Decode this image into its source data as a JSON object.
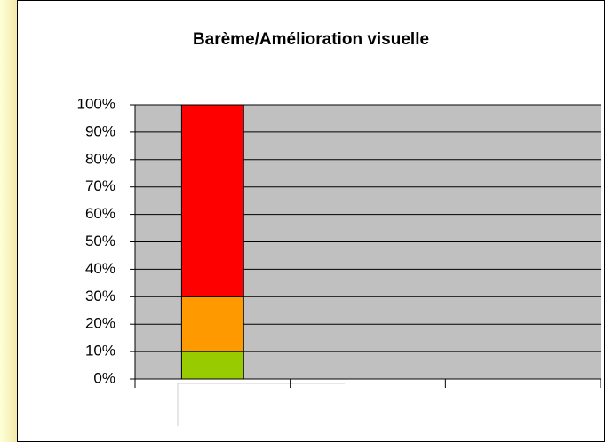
{
  "chart_data": {
    "type": "stacked_bar",
    "title": "Barème/Amélioration visuelle",
    "categories": [
      null,
      null,
      null
    ],
    "series": [
      {
        "color": "#99cc00",
        "values": [
          10,
          null,
          null
        ]
      },
      {
        "color": "#ff9900",
        "values": [
          20,
          null,
          null
        ]
      },
      {
        "color": "#ff0000",
        "values": [
          70,
          null,
          null
        ]
      }
    ],
    "ylim": [
      0,
      100
    ],
    "yticks": [
      {
        "value": 0,
        "label": "0%"
      },
      {
        "value": 10,
        "label": "10%"
      },
      {
        "value": 20,
        "label": "20%"
      },
      {
        "value": 30,
        "label": "30%"
      },
      {
        "value": 40,
        "label": "40%"
      },
      {
        "value": 50,
        "label": "50%"
      },
      {
        "value": 60,
        "label": "60%"
      },
      {
        "value": 70,
        "label": "70%"
      },
      {
        "value": 80,
        "label": "80%"
      },
      {
        "value": 90,
        "label": "90%"
      },
      {
        "value": 100,
        "label": "100%"
      }
    ],
    "grid": true
  }
}
